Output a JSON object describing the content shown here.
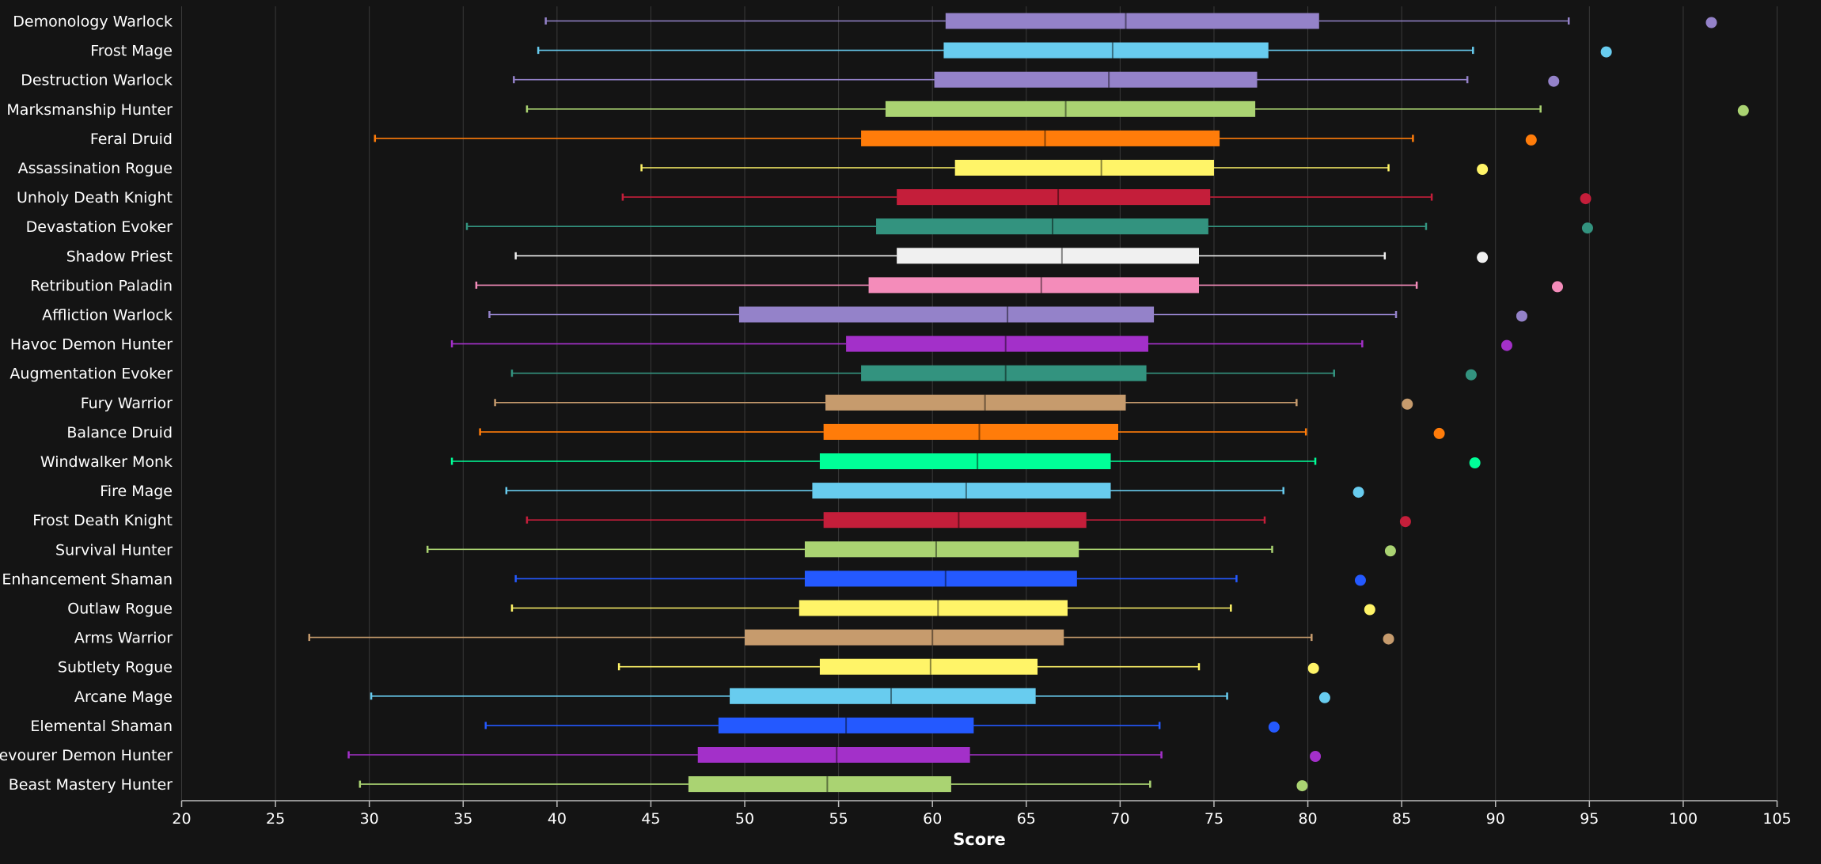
{
  "chart_data": {
    "type": "boxplot",
    "xlabel": "Score",
    "xlim": [
      20,
      105
    ],
    "x_ticks": [
      20,
      25,
      30,
      35,
      40,
      45,
      50,
      55,
      60,
      65,
      70,
      75,
      80,
      85,
      90,
      95,
      100,
      105
    ],
    "grid": "vertical",
    "legend": "none",
    "categories": [
      "Demonology Warlock",
      "Frost Mage",
      "Destruction Warlock",
      "Marksmanship Hunter",
      "Feral Druid",
      "Assassination Rogue",
      "Unholy Death Knight",
      "Devastation Evoker",
      "Shadow Priest",
      "Retribution Paladin",
      "Affliction Warlock",
      "Havoc Demon Hunter",
      "Augmentation Evoker",
      "Fury Warrior",
      "Balance Druid",
      "Windwalker Monk",
      "Fire Mage",
      "Frost Death Knight",
      "Survival Hunter",
      "Enhancement Shaman",
      "Outlaw Rogue",
      "Arms Warrior",
      "Subtlety Rogue",
      "Arcane Mage",
      "Elemental Shaman",
      "Devourer Demon Hunter",
      "Beast Mastery Hunter"
    ],
    "series": [
      {
        "min": 39.4,
        "q1": 60.7,
        "median": 70.3,
        "q3": 80.6,
        "max": 93.9,
        "outlier": 101.5,
        "color": "#9482c9"
      },
      {
        "min": 39.0,
        "q1": 60.6,
        "median": 69.6,
        "q3": 77.9,
        "max": 88.8,
        "outlier": 95.9,
        "color": "#68ccef"
      },
      {
        "min": 37.7,
        "q1": 60.1,
        "median": 69.4,
        "q3": 77.3,
        "max": 88.5,
        "outlier": 93.1,
        "color": "#9482c9"
      },
      {
        "min": 38.4,
        "q1": 57.5,
        "median": 67.1,
        "q3": 77.2,
        "max": 92.4,
        "outlier": 103.2,
        "color": "#aad372"
      },
      {
        "min": 30.3,
        "q1": 56.2,
        "median": 66.0,
        "q3": 75.3,
        "max": 85.6,
        "outlier": 91.9,
        "color": "#ff7c0a"
      },
      {
        "min": 44.5,
        "q1": 61.2,
        "median": 69.0,
        "q3": 75.0,
        "max": 84.3,
        "outlier": 89.3,
        "color": "#fff468"
      },
      {
        "min": 43.5,
        "q1": 58.1,
        "median": 66.7,
        "q3": 74.8,
        "max": 86.6,
        "outlier": 94.8,
        "color": "#c41e3a"
      },
      {
        "min": 35.2,
        "q1": 57.0,
        "median": 66.4,
        "q3": 74.7,
        "max": 86.3,
        "outlier": 94.9,
        "color": "#33937f"
      },
      {
        "min": 37.8,
        "q1": 58.1,
        "median": 66.9,
        "q3": 74.2,
        "max": 84.1,
        "outlier": 89.3,
        "color": "#f0f0f0"
      },
      {
        "min": 35.7,
        "q1": 56.6,
        "median": 65.8,
        "q3": 74.2,
        "max": 85.8,
        "outlier": 93.3,
        "color": "#f48cba"
      },
      {
        "min": 36.4,
        "q1": 49.7,
        "median": 64.0,
        "q3": 71.8,
        "max": 84.7,
        "outlier": 91.4,
        "color": "#9482c9"
      },
      {
        "min": 34.4,
        "q1": 55.4,
        "median": 63.9,
        "q3": 71.5,
        "max": 82.9,
        "outlier": 90.6,
        "color": "#a330c9"
      },
      {
        "min": 37.6,
        "q1": 56.2,
        "median": 63.9,
        "q3": 71.4,
        "max": 81.4,
        "outlier": 88.7,
        "color": "#33937f"
      },
      {
        "min": 36.7,
        "q1": 54.3,
        "median": 62.8,
        "q3": 70.3,
        "max": 79.4,
        "outlier": 85.3,
        "color": "#c69b6d"
      },
      {
        "min": 35.9,
        "q1": 54.2,
        "median": 62.5,
        "q3": 69.9,
        "max": 79.9,
        "outlier": 87.0,
        "color": "#ff7c0a"
      },
      {
        "min": 34.4,
        "q1": 54.0,
        "median": 62.4,
        "q3": 69.5,
        "max": 80.4,
        "outlier": 88.9,
        "color": "#00ff98"
      },
      {
        "min": 37.3,
        "q1": 53.6,
        "median": 61.8,
        "q3": 69.5,
        "max": 78.7,
        "outlier": 82.7,
        "color": "#68ccef"
      },
      {
        "min": 38.4,
        "q1": 54.2,
        "median": 61.4,
        "q3": 68.2,
        "max": 77.7,
        "outlier": 85.2,
        "color": "#c41e3a"
      },
      {
        "min": 33.1,
        "q1": 53.2,
        "median": 60.2,
        "q3": 67.8,
        "max": 78.1,
        "outlier": 84.4,
        "color": "#aad372"
      },
      {
        "min": 37.8,
        "q1": 53.2,
        "median": 60.7,
        "q3": 67.7,
        "max": 76.2,
        "outlier": 82.8,
        "color": "#2459ff"
      },
      {
        "min": 37.6,
        "q1": 52.9,
        "median": 60.3,
        "q3": 67.2,
        "max": 75.9,
        "outlier": 83.3,
        "color": "#fff468"
      },
      {
        "min": 26.8,
        "q1": 50.0,
        "median": 60.0,
        "q3": 67.0,
        "max": 80.2,
        "outlier": 84.3,
        "color": "#c69b6d"
      },
      {
        "min": 43.3,
        "q1": 54.0,
        "median": 59.9,
        "q3": 65.6,
        "max": 74.2,
        "outlier": 80.3,
        "color": "#fff468"
      },
      {
        "min": 30.1,
        "q1": 49.2,
        "median": 57.8,
        "q3": 65.5,
        "max": 75.7,
        "outlier": 80.9,
        "color": "#68ccef"
      },
      {
        "min": 36.2,
        "q1": 48.6,
        "median": 55.4,
        "q3": 62.2,
        "max": 72.1,
        "outlier": 78.2,
        "color": "#2459ff"
      },
      {
        "min": 28.9,
        "q1": 47.5,
        "median": 54.9,
        "q3": 62.0,
        "max": 72.2,
        "outlier": 80.4,
        "color": "#a330c9"
      },
      {
        "min": 29.5,
        "q1": 47.0,
        "median": 54.4,
        "q3": 61.0,
        "max": 71.6,
        "outlier": 79.7,
        "color": "#aad372"
      }
    ]
  }
}
